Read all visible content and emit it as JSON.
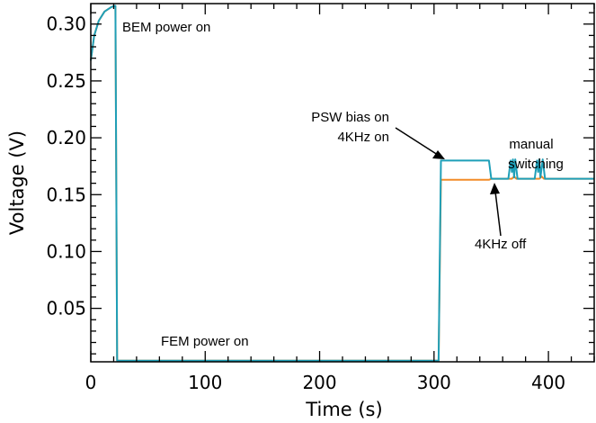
{
  "chart_data": {
    "type": "line",
    "xlabel": "Time (s)",
    "ylabel": "Voltage (V)",
    "xlim": [
      0,
      440
    ],
    "ylim": [
      0.003,
      0.318
    ],
    "x_ticks": [
      0,
      100,
      200,
      300,
      400
    ],
    "y_ticks": [
      0.05,
      0.1,
      0.15,
      0.2,
      0.25,
      0.3
    ],
    "y_tick_labels": [
      "0.05",
      "0.10",
      "0.15",
      "0.20",
      "0.25",
      "0.30"
    ],
    "x_tick_labels": [
      "0",
      "100",
      "200",
      "300",
      "400"
    ],
    "grid": false,
    "legend": "none",
    "series": [
      {
        "color": "#f28c28",
        "points": [
          [
            0,
            0.268
          ],
          [
            3,
            0.29
          ],
          [
            7,
            0.303
          ],
          [
            12,
            0.311
          ],
          [
            18,
            0.315
          ],
          [
            21,
            0.316
          ],
          [
            21.5,
            0.316
          ],
          [
            23,
            0.004
          ],
          [
            60,
            0.004
          ],
          [
            150,
            0.004
          ],
          [
            250,
            0.004
          ],
          [
            304,
            0.004
          ],
          [
            306,
            0.163
          ],
          [
            348,
            0.163
          ],
          [
            350,
            0.164
          ],
          [
            368,
            0.164
          ],
          [
            370,
            0.166
          ],
          [
            372,
            0.164
          ],
          [
            392,
            0.164
          ],
          [
            394,
            0.166
          ],
          [
            396,
            0.164
          ],
          [
            440,
            0.164
          ]
        ]
      },
      {
        "color": "#1e9fb8",
        "points": [
          [
            0,
            0.268
          ],
          [
            3,
            0.29
          ],
          [
            7,
            0.303
          ],
          [
            12,
            0.311
          ],
          [
            18,
            0.315
          ],
          [
            21,
            0.316
          ],
          [
            21.5,
            0.316
          ],
          [
            23,
            0.004
          ],
          [
            60,
            0.004
          ],
          [
            150,
            0.004
          ],
          [
            250,
            0.004
          ],
          [
            304,
            0.004
          ],
          [
            306,
            0.18
          ],
          [
            348,
            0.18
          ],
          [
            350,
            0.164
          ],
          [
            365,
            0.164
          ],
          [
            367,
            0.18
          ],
          [
            368,
            0.17
          ],
          [
            369,
            0.181
          ],
          [
            370,
            0.165
          ],
          [
            371,
            0.181
          ],
          [
            373,
            0.164
          ],
          [
            388,
            0.164
          ],
          [
            390,
            0.18
          ],
          [
            391,
            0.17
          ],
          [
            392,
            0.181
          ],
          [
            393,
            0.165
          ],
          [
            395,
            0.181
          ],
          [
            397,
            0.164
          ],
          [
            440,
            0.164
          ]
        ]
      }
    ],
    "annotations": [
      {
        "id": "bem",
        "lines": [
          "BEM power on"
        ]
      },
      {
        "id": "fem",
        "lines": [
          "FEM power on"
        ]
      },
      {
        "id": "psw",
        "lines": [
          "PSW bias on",
          "4KHz on"
        ]
      },
      {
        "id": "manual",
        "lines": [
          "manual",
          "switching"
        ]
      },
      {
        "id": "off",
        "lines": [
          "4KHz off"
        ]
      }
    ]
  }
}
